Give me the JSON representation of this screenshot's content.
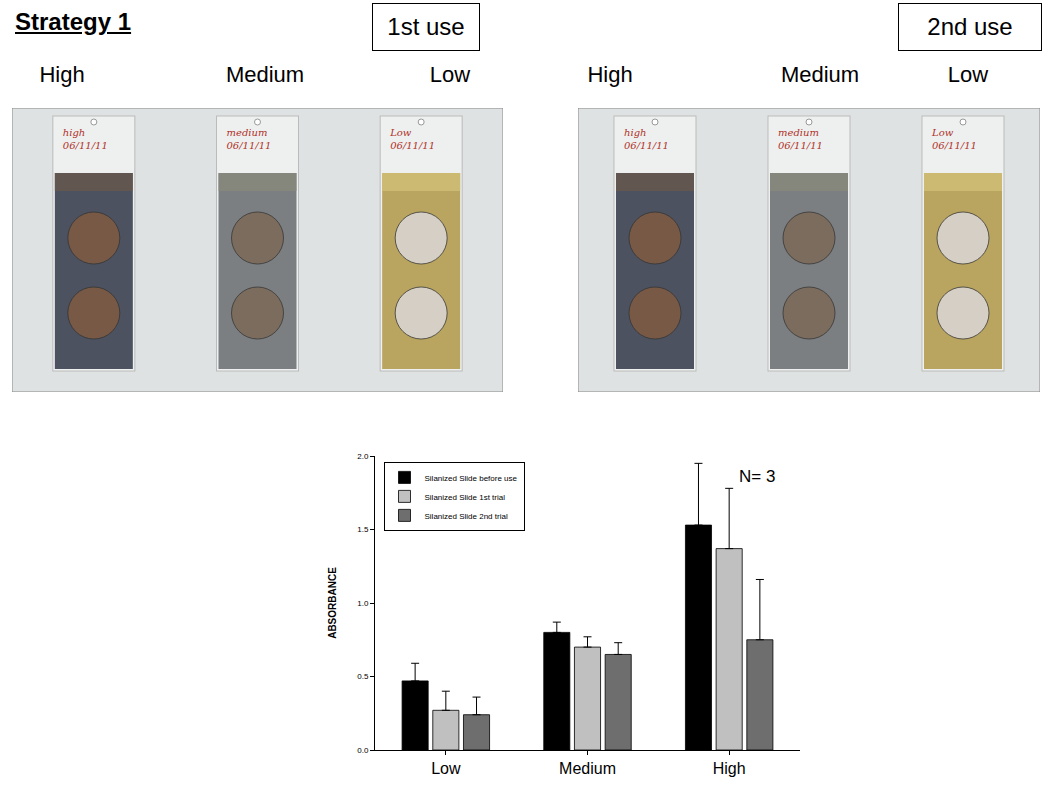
{
  "heading": "Strategy 1",
  "panels": [
    {
      "label": "1st use",
      "slides": [
        {
          "column": "High",
          "marking": [
            "high",
            "06/11/11"
          ]
        },
        {
          "column": "Medium",
          "marking": [
            "medium",
            "06/11/11"
          ]
        },
        {
          "column": "Low",
          "marking": [
            "Low",
            "06/11/11"
          ]
        }
      ]
    },
    {
      "label": "2nd use",
      "slides": [
        {
          "column": "High",
          "marking": [
            "high",
            "06/11/11"
          ]
        },
        {
          "column": "Medium",
          "marking": [
            "medium",
            "06/11/11"
          ]
        },
        {
          "column": "Low",
          "marking": [
            "Low",
            "06/11/11"
          ]
        }
      ]
    }
  ],
  "chart_data": {
    "type": "bar",
    "categories": [
      "Low",
      "Medium",
      "High"
    ],
    "series": [
      {
        "name": "Silanized Slide before use",
        "color": "#000000",
        "values": [
          0.47,
          0.8,
          1.53
        ],
        "error_plus": [
          0.12,
          0.07,
          0.42
        ]
      },
      {
        "name": "Silanized Slide 1st trial",
        "color": "#c0c0c0",
        "values": [
          0.27,
          0.7,
          1.37
        ],
        "error_plus": [
          0.13,
          0.07,
          0.41
        ]
      },
      {
        "name": "Silanized Slide 2nd trial",
        "color": "#6e6e6e",
        "values": [
          0.24,
          0.65,
          0.75
        ],
        "error_plus": [
          0.12,
          0.08,
          0.41
        ]
      }
    ],
    "y_label": "ABSORBANCE",
    "ylim": [
      0,
      2.0
    ],
    "yticks": [
      {
        "value": 0,
        "label": "0.0"
      },
      {
        "value": 0.5,
        "label": "0.5"
      },
      {
        "value": 1.0,
        "label": "1.0"
      },
      {
        "value": 1.5,
        "label": "1.5"
      },
      {
        "value": 2.0,
        "label": "2.0"
      }
    ],
    "grid": false,
    "legend": "top-left",
    "annotations": [
      {
        "text": "N= 3",
        "category": "High"
      }
    ]
  }
}
